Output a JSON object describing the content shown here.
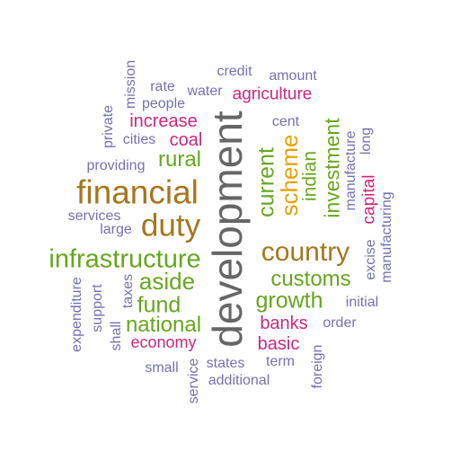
{
  "colors": {
    "purple": "#7570b3",
    "magenta": "#d0267a",
    "green": "#66a61e",
    "brown": "#a6761d",
    "orange": "#e6a100",
    "gray": "#666666"
  },
  "words": [
    {
      "text": "development",
      "color": "gray"
    },
    {
      "text": "financial",
      "color": "brown"
    },
    {
      "text": "duty",
      "color": "brown"
    },
    {
      "text": "country",
      "color": "brown"
    },
    {
      "text": "infrastructure",
      "color": "green"
    },
    {
      "text": "aside",
      "color": "green"
    },
    {
      "text": "fund",
      "color": "green"
    },
    {
      "text": "national",
      "color": "green"
    },
    {
      "text": "customs",
      "color": "green"
    },
    {
      "text": "growth",
      "color": "green"
    },
    {
      "text": "scheme",
      "color": "orange"
    },
    {
      "text": "current",
      "color": "green"
    },
    {
      "text": "indian",
      "color": "green"
    },
    {
      "text": "investment",
      "color": "green"
    },
    {
      "text": "rural",
      "color": "green"
    },
    {
      "text": "increase",
      "color": "magenta"
    },
    {
      "text": "coal",
      "color": "magenta"
    },
    {
      "text": "agriculture",
      "color": "magenta"
    },
    {
      "text": "capital",
      "color": "magenta"
    },
    {
      "text": "banks",
      "color": "magenta"
    },
    {
      "text": "basic",
      "color": "magenta"
    },
    {
      "text": "economy",
      "color": "magenta"
    },
    {
      "text": "credit",
      "color": "purple"
    },
    {
      "text": "amount",
      "color": "purple"
    },
    {
      "text": "rate",
      "color": "purple"
    },
    {
      "text": "water",
      "color": "purple"
    },
    {
      "text": "people",
      "color": "purple"
    },
    {
      "text": "mission",
      "color": "purple"
    },
    {
      "text": "private",
      "color": "purple"
    },
    {
      "text": "cities",
      "color": "purple"
    },
    {
      "text": "providing",
      "color": "purple"
    },
    {
      "text": "services",
      "color": "purple"
    },
    {
      "text": "large",
      "color": "purple"
    },
    {
      "text": "cent",
      "color": "purple"
    },
    {
      "text": "manufacture",
      "color": "purple"
    },
    {
      "text": "long",
      "color": "purple"
    },
    {
      "text": "manufacturing",
      "color": "purple"
    },
    {
      "text": "excise",
      "color": "purple"
    },
    {
      "text": "expenditure",
      "color": "purple"
    },
    {
      "text": "support",
      "color": "purple"
    },
    {
      "text": "taxes",
      "color": "purple"
    },
    {
      "text": "shall",
      "color": "purple"
    },
    {
      "text": "initial",
      "color": "purple"
    },
    {
      "text": "order",
      "color": "purple"
    },
    {
      "text": "small",
      "color": "purple"
    },
    {
      "text": "service",
      "color": "purple"
    },
    {
      "text": "states",
      "color": "purple"
    },
    {
      "text": "term",
      "color": "purple"
    },
    {
      "text": "additional",
      "color": "purple"
    },
    {
      "text": "foreign",
      "color": "purple"
    }
  ]
}
